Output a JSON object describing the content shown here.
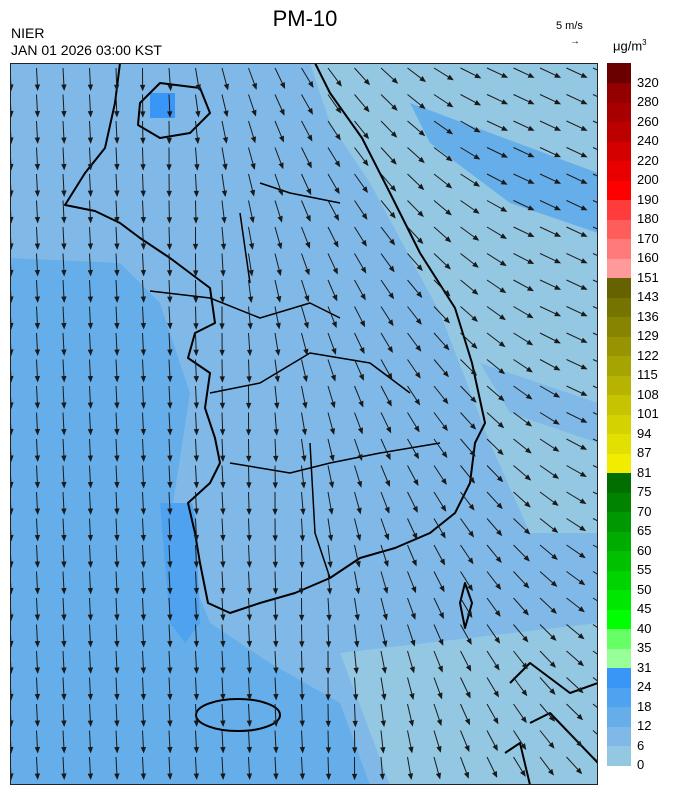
{
  "header": {
    "title": "PM-10",
    "organization": "NIER",
    "datetime": "JAN 01 2026 03:00 KST",
    "vector_reference": "5 m/s",
    "vector_reference_arrow": "→",
    "unit": "μg/m",
    "unit_exponent": "3"
  },
  "colorbar": {
    "labels": [
      "0",
      "6",
      "12",
      "18",
      "24",
      "31",
      "35",
      "40",
      "45",
      "50",
      "55",
      "60",
      "65",
      "70",
      "75",
      "81",
      "87",
      "94",
      "101",
      "108",
      "115",
      "122",
      "129",
      "136",
      "143",
      "151",
      "160",
      "170",
      "180",
      "190",
      "200",
      "220",
      "240",
      "260",
      "280",
      "320"
    ],
    "colors": [
      "#93c7e2",
      "#80b9e8",
      "#66aeea",
      "#4fa2ef",
      "#3a96f6",
      "#99ff99",
      "#66ff66",
      "#00ff00",
      "#00e800",
      "#00d400",
      "#00c000",
      "#00ac00",
      "#009800",
      "#008400",
      "#006f00",
      "#f2ec00",
      "#e2e000",
      "#d4d200",
      "#c6c400",
      "#b6b400",
      "#a6a400",
      "#969400",
      "#868400",
      "#767400",
      "#666200",
      "#ff9a9a",
      "#ff7a7a",
      "#ff5c5c",
      "#ff3c3c",
      "#ff0000",
      "#e80000",
      "#d40000",
      "#bc0000",
      "#a80000",
      "#940000",
      "#6a0000"
    ]
  },
  "map": {
    "sea_color": "#66aeea",
    "land_color": "#80b9e8",
    "clean_color": "#93c7e2",
    "boundary_color": "#000000",
    "wind_arrow_color": "#1a1a1a"
  }
}
